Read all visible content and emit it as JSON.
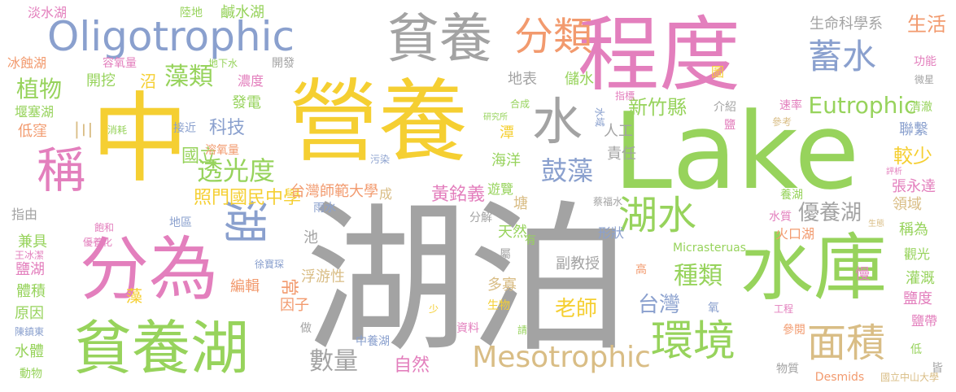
{
  "palette": {
    "yellow": "#f5cf32",
    "green": "#97d35c",
    "pink": "#e37fbd",
    "blue": "#8aa0ce",
    "gray": "#a3a3a3",
    "orange": "#f29a6e",
    "tan": "#d9bd85"
  },
  "words": [
    {
      "text": "湖泊",
      "color": "gray"
    },
    {
      "text": "Lake",
      "color": "green"
    },
    {
      "text": "營養",
      "color": "yellow"
    },
    {
      "text": "中",
      "color": "yellow"
    },
    {
      "text": "程度",
      "color": "pink"
    },
    {
      "text": "水庫",
      "color": "green"
    },
    {
      "text": "分為",
      "color": "pink"
    },
    {
      "text": "貧養湖",
      "color": "green"
    },
    {
      "text": "貧養",
      "color": "gray"
    },
    {
      "text": "Oligotrophic",
      "color": "blue"
    },
    {
      "text": "分類",
      "color": "orange"
    },
    {
      "text": "蓄水",
      "color": "blue"
    },
    {
      "text": "水",
      "color": "gray"
    },
    {
      "text": "稱",
      "color": "pink"
    },
    {
      "text": "湖",
      "color": "blue"
    },
    {
      "text": "湖水",
      "color": "green"
    },
    {
      "text": "環境",
      "color": "green"
    },
    {
      "text": "面積",
      "color": "tan"
    },
    {
      "text": "Mesotrophic",
      "color": "tan"
    },
    {
      "text": "Eutrophic",
      "color": "green"
    },
    {
      "text": "藻類",
      "color": "green"
    },
    {
      "text": "植物",
      "color": "green"
    },
    {
      "text": "透光度",
      "color": "green"
    },
    {
      "text": "鼓藻",
      "color": "blue"
    },
    {
      "text": "種類",
      "color": "green"
    },
    {
      "text": "台灣",
      "color": "blue"
    },
    {
      "text": "數量",
      "color": "gray"
    },
    {
      "text": "優養湖",
      "color": "gray"
    },
    {
      "text": "較少",
      "color": "yellow"
    },
    {
      "text": "新竹縣",
      "color": "green"
    },
    {
      "text": "老師",
      "color": "yellow"
    },
    {
      "text": "黃銘義",
      "color": "pink"
    },
    {
      "text": "照門國民中學",
      "color": "yellow"
    },
    {
      "text": "台灣師範大學",
      "color": "orange"
    },
    {
      "text": "科技",
      "color": "blue"
    },
    {
      "text": "國立",
      "color": "green"
    },
    {
      "text": "三",
      "color": "tan"
    },
    {
      "text": "生活",
      "color": "orange"
    },
    {
      "text": "生命科學系",
      "color": "gray"
    },
    {
      "text": "淡水湖",
      "color": "pink"
    },
    {
      "text": "陸地",
      "color": "green"
    },
    {
      "text": "鹹水湖",
      "color": "green"
    },
    {
      "text": "冰蝕湖",
      "color": "orange"
    },
    {
      "text": "容氧量",
      "color": "pink"
    },
    {
      "text": "開發",
      "color": "gray"
    },
    {
      "text": "地下水",
      "color": "green"
    },
    {
      "text": "開挖",
      "color": "green"
    },
    {
      "text": "沼",
      "color": "yellow"
    },
    {
      "text": "濃度",
      "color": "pink"
    },
    {
      "text": "發電",
      "color": "green"
    },
    {
      "text": "地表",
      "color": "gray"
    },
    {
      "text": "儲水",
      "color": "green"
    },
    {
      "text": "堰塞湖",
      "color": "green"
    },
    {
      "text": "低窪",
      "color": "orange"
    },
    {
      "text": "消耗",
      "color": "green"
    },
    {
      "text": "接近",
      "color": "blue"
    },
    {
      "text": "溶氧量",
      "color": "orange"
    },
    {
      "text": "人工",
      "color": "gray"
    },
    {
      "text": "責任",
      "color": "gray"
    },
    {
      "text": "海洋",
      "color": "green"
    },
    {
      "text": "介紹",
      "color": "gray"
    },
    {
      "text": "速率",
      "color": "pink"
    },
    {
      "text": "參考",
      "color": "tan"
    },
    {
      "text": "聯繫",
      "color": "blue"
    },
    {
      "text": "清澈",
      "color": "green"
    },
    {
      "text": "功能",
      "color": "pink"
    },
    {
      "text": "微星",
      "color": "gray"
    },
    {
      "text": "指標",
      "color": "pink"
    },
    {
      "text": "合成",
      "color": "green"
    },
    {
      "text": "研究所",
      "color": "green"
    },
    {
      "text": "潭",
      "color": "yellow"
    },
    {
      "text": "水域",
      "color": "blue"
    },
    {
      "text": "圖",
      "color": "yellow"
    },
    {
      "text": "鹽",
      "color": "pink"
    },
    {
      "text": "污染",
      "color": "blue"
    },
    {
      "text": "成",
      "color": "tan"
    },
    {
      "text": "遊覽",
      "color": "green"
    },
    {
      "text": "指由",
      "color": "gray"
    },
    {
      "text": "飽和",
      "color": "pink"
    },
    {
      "text": "地區",
      "color": "blue"
    },
    {
      "text": "雨水",
      "color": "blue"
    },
    {
      "text": "分解",
      "color": "gray"
    },
    {
      "text": "蔡福水",
      "color": "gray"
    },
    {
      "text": "養湖",
      "color": "green"
    },
    {
      "text": "水質",
      "color": "pink"
    },
    {
      "text": "評析",
      "color": "pink"
    },
    {
      "text": "張永達",
      "color": "pink"
    },
    {
      "text": "領域",
      "color": "tan"
    },
    {
      "text": "塘",
      "color": "tan"
    },
    {
      "text": "形狀",
      "color": "blue"
    },
    {
      "text": "火口湖",
      "color": "orange"
    },
    {
      "text": "生態",
      "color": "tan"
    },
    {
      "text": "稱為",
      "color": "green"
    },
    {
      "text": "兼具",
      "color": "green"
    },
    {
      "text": "優養化",
      "color": "pink"
    },
    {
      "text": "池",
      "color": "gray"
    },
    {
      "text": "天然",
      "color": "green"
    },
    {
      "text": "有",
      "color": "green"
    },
    {
      "text": "屬",
      "color": "gray"
    },
    {
      "text": "觀光",
      "color": "green"
    },
    {
      "text": "鹽湖",
      "color": "pink"
    },
    {
      "text": "王冰潔",
      "color": "pink"
    },
    {
      "text": "徐寶琛",
      "color": "blue"
    },
    {
      "text": "浮游性",
      "color": "tan"
    },
    {
      "text": "副教授",
      "color": "gray"
    },
    {
      "text": "Micrasteruas",
      "color": "green"
    },
    {
      "text": "高",
      "color": "orange"
    },
    {
      "text": "灌溉",
      "color": "green"
    },
    {
      "text": "體積",
      "color": "green"
    },
    {
      "text": "藻",
      "color": "yellow"
    },
    {
      "text": "編輯",
      "color": "orange"
    },
    {
      "text": "常",
      "color": "orange"
    },
    {
      "text": "多寡",
      "color": "tan"
    },
    {
      "text": "慢",
      "color": "pink"
    },
    {
      "text": "鹽度",
      "color": "pink"
    },
    {
      "text": "原因",
      "color": "green"
    },
    {
      "text": "因子",
      "color": "orange"
    },
    {
      "text": "少",
      "color": "yellow"
    },
    {
      "text": "生物",
      "color": "yellow"
    },
    {
      "text": "氧",
      "color": "blue"
    },
    {
      "text": "工程",
      "color": "pink"
    },
    {
      "text": "陳鎮東",
      "color": "blue"
    },
    {
      "text": "做",
      "color": "gray"
    },
    {
      "text": "資料",
      "color": "pink"
    },
    {
      "text": "請",
      "color": "green"
    },
    {
      "text": "鹽帶",
      "color": "pink"
    },
    {
      "text": "水體",
      "color": "green"
    },
    {
      "text": "中養湖",
      "color": "blue"
    },
    {
      "text": "參閱",
      "color": "orange"
    },
    {
      "text": "低",
      "color": "green"
    },
    {
      "text": "動物",
      "color": "green"
    },
    {
      "text": "自然",
      "color": "pink"
    },
    {
      "text": "物質",
      "color": "gray"
    },
    {
      "text": "Desmids",
      "color": "orange"
    },
    {
      "text": "國立中山大學",
      "color": "tan"
    },
    {
      "text": "皆",
      "color": "gray"
    }
  ]
}
